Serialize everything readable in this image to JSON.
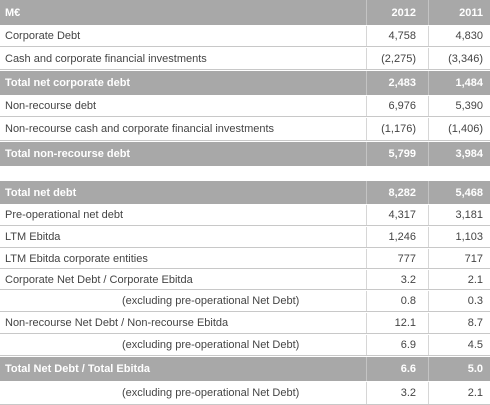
{
  "table": {
    "header": [
      "M€",
      "2012",
      "2011"
    ],
    "rows": [
      [
        "Corporate Debt",
        "4,758",
        "4,830"
      ],
      [
        "Cash and corporate financial investments",
        "(2,275)",
        "(3,346)"
      ],
      [
        "Total net corporate debt",
        "2,483",
        "1,484"
      ],
      [
        "Non-recourse debt",
        "6,976",
        "5,390"
      ],
      [
        "Non-recourse cash and corporate financial investments",
        "(1,176)",
        "(1,406)"
      ],
      [
        "Total non-recourse debt",
        "5,799",
        "3,984"
      ],
      [
        "Total net debt",
        "8,282",
        "5,468"
      ],
      [
        "Pre-operational net debt",
        "4,317",
        "3,181"
      ],
      [
        "LTM Ebitda",
        "1,246",
        "1,103"
      ],
      [
        "LTM Ebitda corporate entities",
        "777",
        "717"
      ],
      [
        "Corporate Net Debt / Corporate Ebitda",
        "3.2",
        "2.1"
      ],
      [
        "(excluding pre-operational Net Debt)",
        "0.8",
        "0.3"
      ],
      [
        "Non-recourse Net Debt / Non-recourse Ebitda",
        "12.1",
        "8.7"
      ],
      [
        "(excluding pre-operational Net Debt)",
        "6.9",
        "4.5"
      ],
      [
        "Total Net Debt / Total Ebitda",
        "6.6",
        "5.0"
      ],
      [
        "(excluding pre-operational Net Debt)",
        "3.2",
        "2.1"
      ]
    ]
  }
}
